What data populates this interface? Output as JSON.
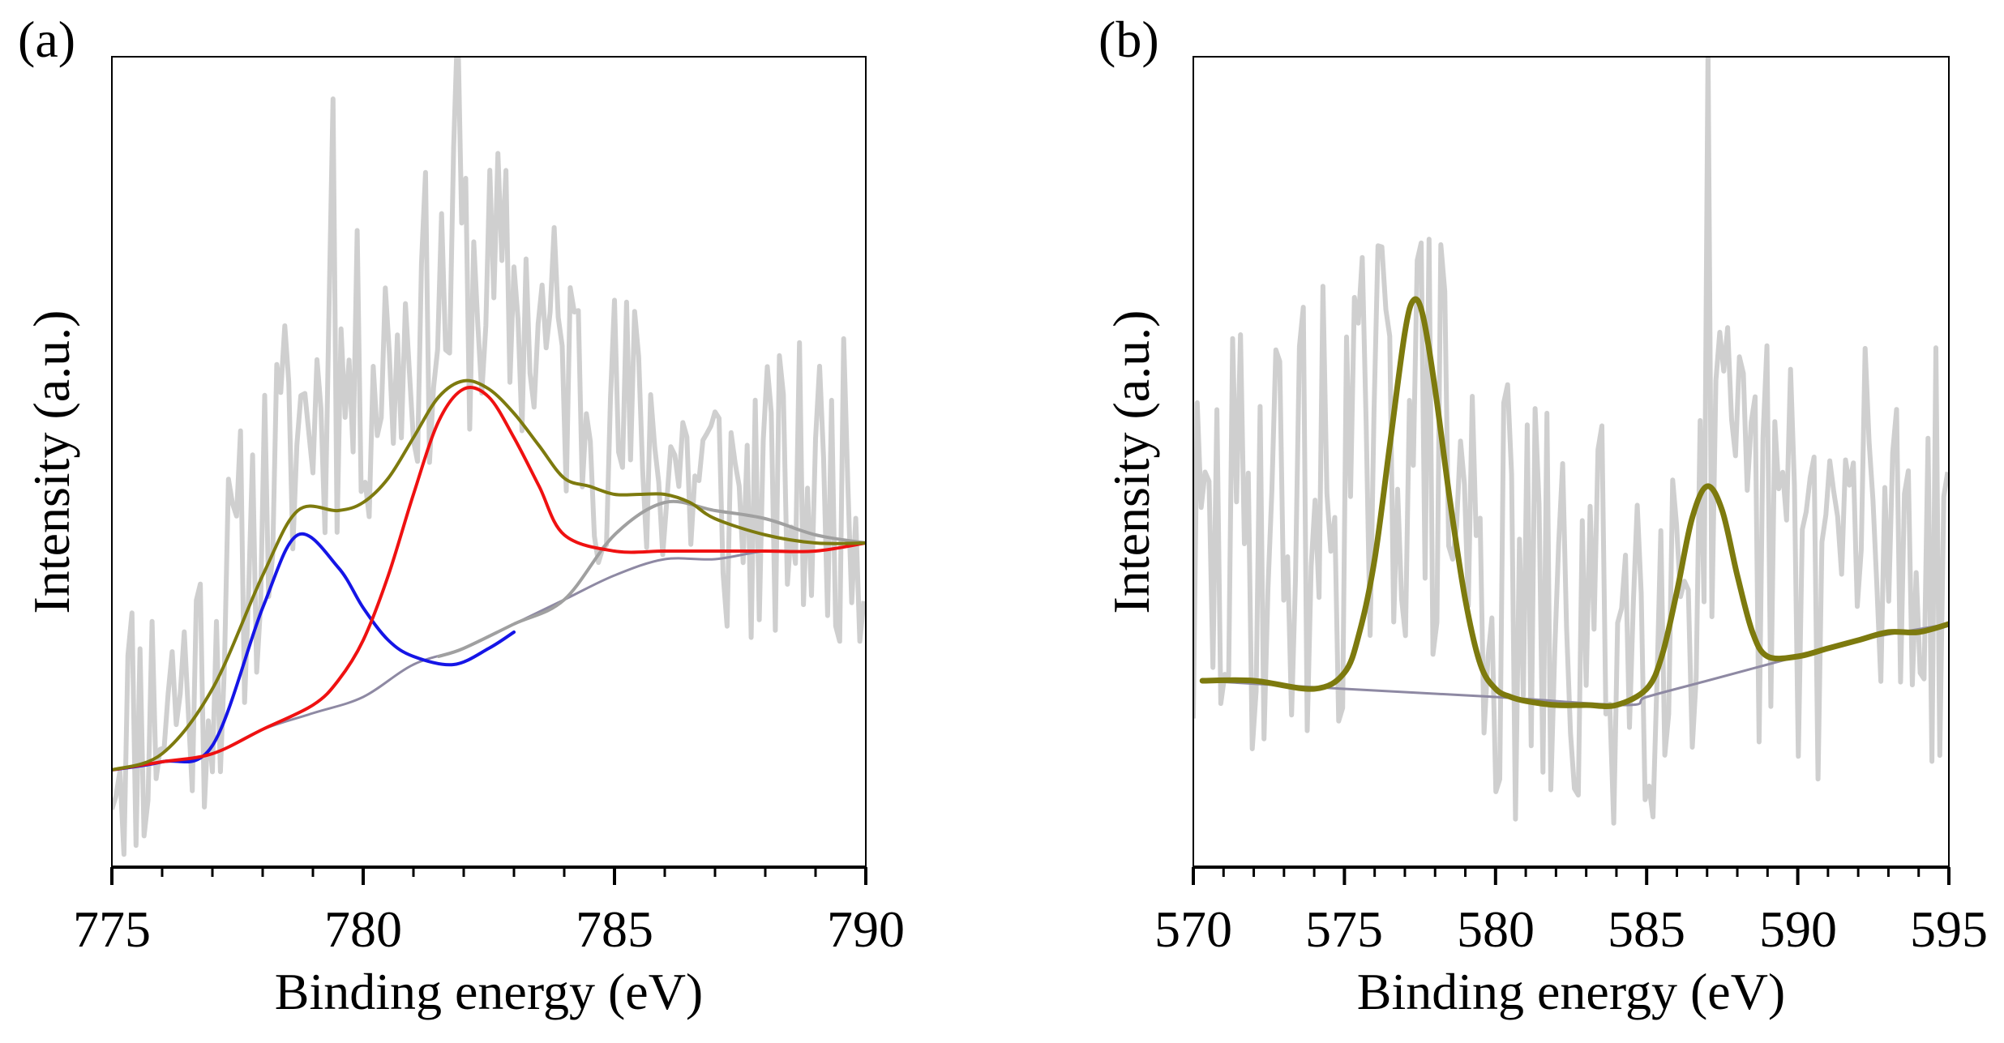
{
  "colors": {
    "raw": "#cfcfcf",
    "background": "#8e89a3",
    "fit_envelope": "#7d7a0e",
    "peak_blue": "#1515e6",
    "peak_red": "#ef1111",
    "peak_gray": "#a0a0a0",
    "axis": "#000000"
  },
  "chart_data": [
    {
      "type": "line",
      "panel_label": "(a)",
      "xlabel": "Binding energy (eV)",
      "ylabel": "Intensity (a.u.)",
      "xlim": [
        775,
        790
      ],
      "ylim": [
        0,
        1
      ],
      "x_ticks": [
        775,
        780,
        785,
        790
      ],
      "x_tick_labels": [
        "775",
        "780",
        "785",
        "790"
      ],
      "x_minor_step": 1,
      "y_ticks_visible": false,
      "noise": {
        "seed": 11,
        "step": 0.08,
        "amp": 0.19,
        "scale": 1.0,
        "spike_x": [
          779.4,
          781.9
        ],
        "spike_h": [
          0.17,
          0.14
        ]
      },
      "series": [
        {
          "name": "raw data",
          "role": "raw",
          "color_key": "raw",
          "x": [
            775,
            776,
            777,
            778,
            779,
            780,
            781,
            782,
            783,
            784,
            785,
            786,
            787,
            788,
            789,
            790
          ],
          "values": [
            0.17,
            0.2,
            0.26,
            0.44,
            0.58,
            0.6,
            0.66,
            0.72,
            0.7,
            0.62,
            0.54,
            0.52,
            0.46,
            0.44,
            0.47,
            0.46
          ]
        },
        {
          "name": "background",
          "role": "line",
          "color_key": "background",
          "width": 3,
          "x": [
            775,
            776,
            777,
            778,
            779,
            780,
            781,
            782,
            783,
            784,
            785,
            786,
            787,
            788,
            789,
            790
          ],
          "values": [
            0.12,
            0.13,
            0.14,
            0.17,
            0.19,
            0.21,
            0.25,
            0.27,
            0.3,
            0.33,
            0.36,
            0.38,
            0.38,
            0.39,
            0.39,
            0.4
          ]
        },
        {
          "name": "peak 1",
          "role": "line",
          "color_key": "peak_gray",
          "width": 4,
          "x": [
            781.5,
            782,
            783,
            784,
            785,
            786,
            787,
            788,
            789,
            790
          ],
          "values": [
            0.26,
            0.27,
            0.3,
            0.33,
            0.41,
            0.45,
            0.44,
            0.43,
            0.41,
            0.4
          ]
        },
        {
          "name": "peak 2",
          "role": "line",
          "color_key": "peak_blue",
          "width": 4,
          "x": [
            775,
            776,
            777,
            778,
            778.7,
            779.5,
            780,
            780.5,
            781,
            781.8,
            782.5,
            783
          ],
          "values": [
            0.12,
            0.13,
            0.15,
            0.32,
            0.41,
            0.37,
            0.32,
            0.28,
            0.26,
            0.25,
            0.27,
            0.29
          ]
        },
        {
          "name": "peak 3",
          "role": "line",
          "color_key": "peak_red",
          "width": 4,
          "x": [
            775,
            776,
            777,
            778,
            779,
            779.5,
            780,
            780.5,
            781,
            781.5,
            782,
            782.5,
            783,
            783.5,
            784,
            785,
            786,
            787,
            788,
            789,
            790
          ],
          "values": [
            0.12,
            0.13,
            0.14,
            0.17,
            0.2,
            0.23,
            0.28,
            0.36,
            0.46,
            0.55,
            0.59,
            0.58,
            0.53,
            0.47,
            0.41,
            0.39,
            0.39,
            0.39,
            0.39,
            0.39,
            0.4
          ]
        },
        {
          "name": "envelope",
          "role": "line",
          "color_key": "fit_envelope",
          "width": 4,
          "x": [
            775,
            776,
            777,
            778,
            778.7,
            779.5,
            780,
            780.5,
            781,
            781.5,
            782,
            782.5,
            783,
            783.5,
            784,
            784.5,
            785,
            785.5,
            786,
            786.5,
            787,
            788,
            789,
            790
          ],
          "values": [
            0.12,
            0.14,
            0.22,
            0.36,
            0.44,
            0.44,
            0.45,
            0.48,
            0.53,
            0.58,
            0.6,
            0.59,
            0.56,
            0.52,
            0.48,
            0.47,
            0.46,
            0.46,
            0.46,
            0.45,
            0.43,
            0.41,
            0.4,
            0.4
          ]
        }
      ]
    },
    {
      "type": "line",
      "panel_label": "(b)",
      "xlabel": "Binding energy (eV)",
      "ylabel": "Intensity (a.u.)",
      "xlim": [
        570,
        595
      ],
      "ylim": [
        0,
        1
      ],
      "x_ticks": [
        570,
        575,
        580,
        585,
        590,
        595
      ],
      "x_tick_labels": [
        "570",
        "575",
        "580",
        "585",
        "590",
        "595"
      ],
      "x_minor_step": 1,
      "y_ticks_visible": false,
      "noise": {
        "seed": 29,
        "step": 0.13,
        "amp": 0.29,
        "scale": 1.0,
        "spike_x": [
          587.0
        ],
        "spike_h": [
          0.28
        ]
      },
      "series": [
        {
          "name": "raw data",
          "role": "raw",
          "color_key": "raw",
          "x": [
            570,
            572,
            574,
            575,
            576,
            577,
            578,
            579,
            580,
            582,
            584,
            586,
            587,
            588,
            590,
            592,
            595
          ],
          "values": [
            0.33,
            0.42,
            0.44,
            0.47,
            0.5,
            0.56,
            0.52,
            0.42,
            0.33,
            0.28,
            0.3,
            0.38,
            0.44,
            0.4,
            0.38,
            0.4,
            0.42
          ]
        },
        {
          "name": "background",
          "role": "line",
          "color_key": "background",
          "width": 3,
          "x": [
            570.3,
            575,
            580,
            584.3,
            585,
            587,
            590,
            592,
            595
          ],
          "values": [
            0.23,
            0.22,
            0.21,
            0.2,
            0.21,
            0.23,
            0.26,
            0.28,
            0.3
          ]
        },
        {
          "name": "fit",
          "role": "line",
          "color_key": "fit_envelope",
          "width": 7,
          "x": [
            570.3,
            572,
            574,
            575,
            575.5,
            576,
            576.5,
            577,
            577.3,
            577.6,
            578,
            578.5,
            579,
            579.5,
            580,
            580.5,
            581,
            582,
            583,
            584,
            585,
            585.5,
            586,
            586.5,
            587,
            587.5,
            588,
            588.5,
            589,
            590,
            591,
            592,
            593,
            594,
            595
          ],
          "values": [
            0.23,
            0.23,
            0.22,
            0.24,
            0.29,
            0.38,
            0.52,
            0.66,
            0.7,
            0.68,
            0.59,
            0.45,
            0.33,
            0.25,
            0.22,
            0.21,
            0.205,
            0.2,
            0.2,
            0.2,
            0.22,
            0.26,
            0.34,
            0.43,
            0.47,
            0.44,
            0.36,
            0.29,
            0.26,
            0.26,
            0.27,
            0.28,
            0.29,
            0.29,
            0.3
          ]
        }
      ]
    }
  ]
}
